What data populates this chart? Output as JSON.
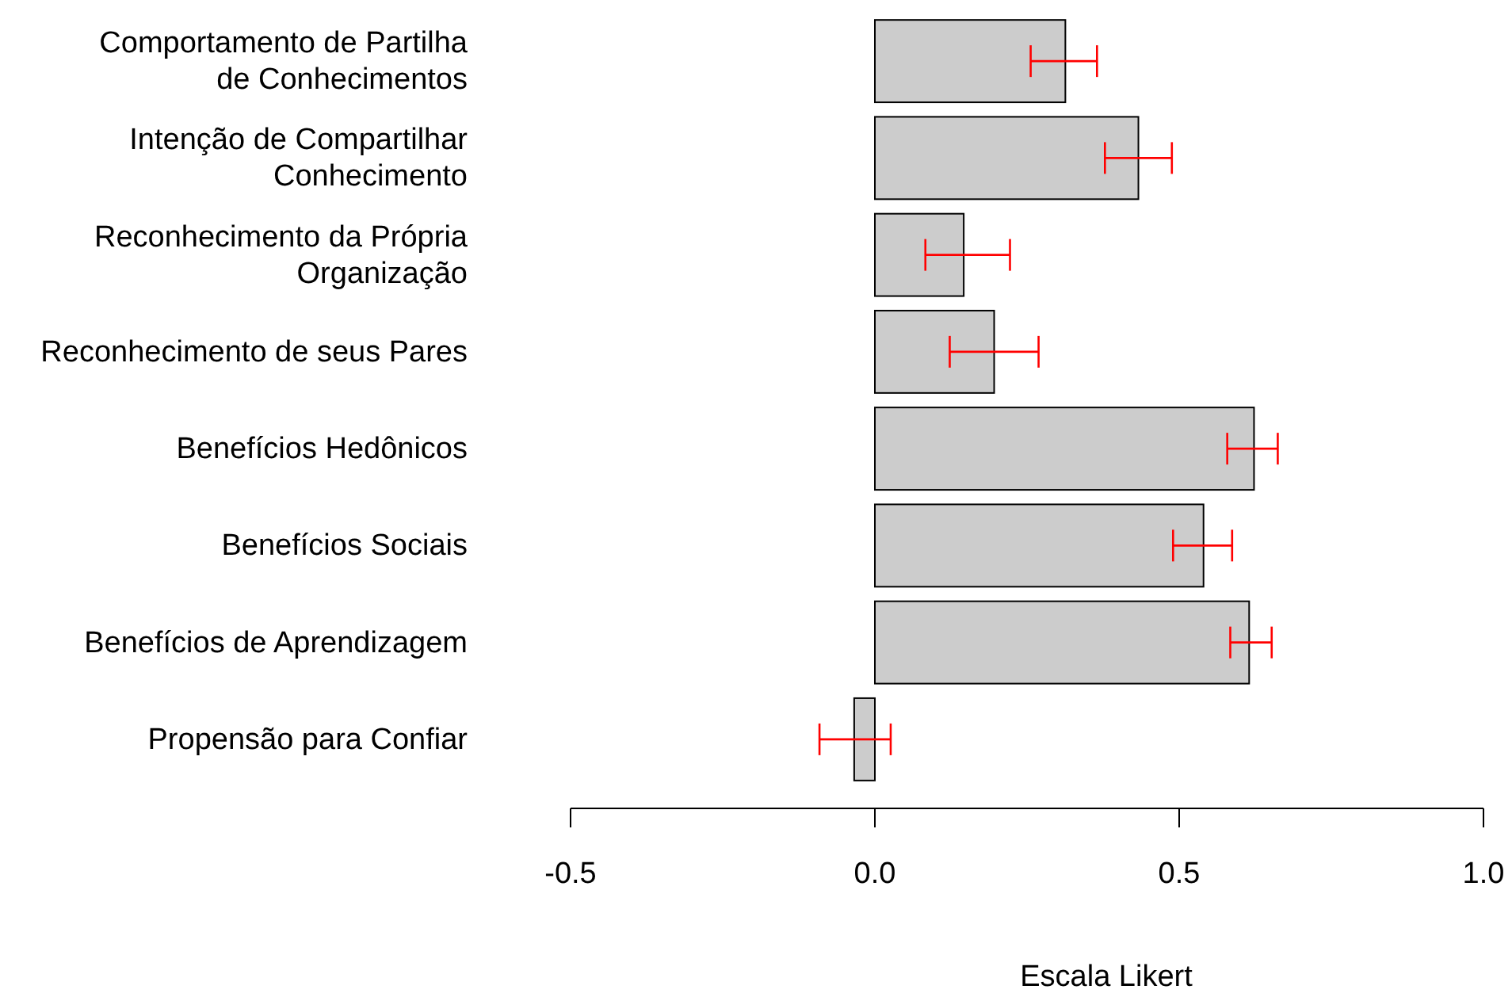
{
  "chart_data": {
    "type": "bar",
    "orientation": "horizontal",
    "xlabel": "Escala Likert",
    "categories": [
      "Comportamento de Partilha\nde Conhecimentos",
      "Intenção de Compartilhar\nConhecimento",
      "Reconhecimento da Própria\nOrganização",
      "Reconhecimento de seus Pares",
      "Benefícios Hedônicos",
      "Benefícios Sociais",
      "Benefícios de Aprendizagem",
      "Propensão para Confiar"
    ],
    "series": [
      {
        "color": "#cccccc",
        "values": [
          0.313,
          0.433,
          0.146,
          0.196,
          0.623,
          0.54,
          0.615,
          -0.034
        ],
        "errors": [
          [
            0.256,
            0.365
          ],
          [
            0.378,
            0.488
          ],
          [
            0.083,
            0.222
          ],
          [
            0.123,
            0.269
          ],
          [
            0.579,
            0.662
          ],
          [
            0.49,
            0.587
          ],
          [
            0.584,
            0.652
          ],
          [
            -0.091,
            0.026
          ]
        ]
      }
    ],
    "xlim": [
      -0.5,
      1.0
    ],
    "xticks": [
      {
        "value": -0.5,
        "label": "-0.5"
      },
      {
        "value": 0,
        "label": "0.0"
      },
      {
        "value": 0.5,
        "label": "0.5"
      },
      {
        "value": 1,
        "label": "1.0"
      }
    ],
    "grid": false
  }
}
